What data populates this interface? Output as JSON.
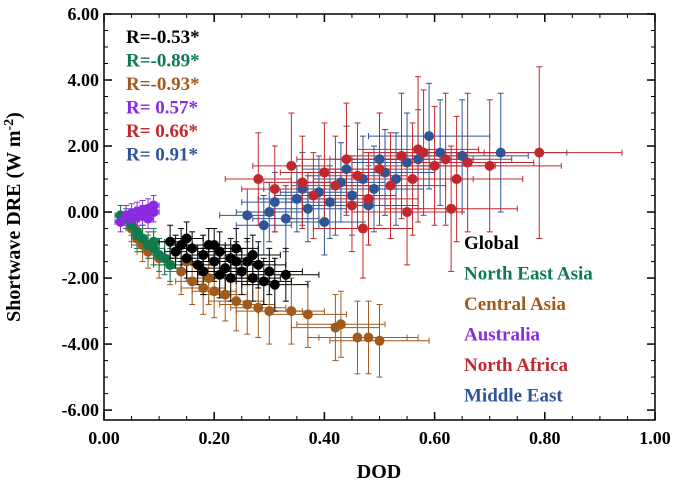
{
  "chart_data": {
    "type": "scatter",
    "xlabel": "DOD",
    "ylabel_main": "Shortwave DRE (W m",
    "ylabel_exp": "-2",
    "ylabel_close": ")",
    "xlim": [
      0,
      1
    ],
    "ylim": [
      -6.3,
      6.0
    ],
    "x_ticks": [
      0,
      0.2,
      0.4,
      0.6,
      0.8,
      1.0
    ],
    "x_tick_labels": [
      "0.00",
      "0.20",
      "0.40",
      "0.60",
      "0.80",
      "1.00"
    ],
    "y_ticks": [
      6,
      4,
      2,
      0,
      -2,
      -4,
      -6
    ],
    "y_tick_labels": [
      "6.00",
      "4.00",
      "2.00",
      "0.00",
      "-2.00",
      "-4.00",
      "-6.00"
    ],
    "grid": false,
    "legend_placement": "right",
    "stats_placement": "top-left",
    "stats": [
      {
        "text": "R=-0.53*",
        "color": "#000000"
      },
      {
        "text": "R=-0.89*",
        "color": "#0f7a4f"
      },
      {
        "text": "R=-0.93*",
        "color": "#a05a1c"
      },
      {
        "text": "R= 0.57*",
        "color": "#8a2be2"
      },
      {
        "text": "R= 0.66*",
        "color": "#c0282d"
      },
      {
        "text": "R= 0.91*",
        "color": "#2f5597"
      }
    ],
    "series": [
      {
        "name": "Global",
        "color": "#000000",
        "points": [
          [
            0.12,
            -0.9,
            0.02,
            0.5
          ],
          [
            0.13,
            -1.2,
            0.02,
            0.5
          ],
          [
            0.14,
            -1.0,
            0.02,
            0.5
          ],
          [
            0.15,
            -1.4,
            0.03,
            0.6
          ],
          [
            0.16,
            -1.1,
            0.03,
            0.5
          ],
          [
            0.17,
            -1.6,
            0.03,
            0.6
          ],
          [
            0.18,
            -1.3,
            0.03,
            0.6
          ],
          [
            0.19,
            -1.0,
            0.03,
            0.5
          ],
          [
            0.2,
            -1.5,
            0.04,
            0.6
          ],
          [
            0.21,
            -1.2,
            0.04,
            0.6
          ],
          [
            0.22,
            -1.7,
            0.04,
            0.7
          ],
          [
            0.23,
            -1.4,
            0.04,
            0.6
          ],
          [
            0.24,
            -1.1,
            0.04,
            0.6
          ],
          [
            0.25,
            -1.8,
            0.05,
            0.7
          ],
          [
            0.26,
            -1.5,
            0.05,
            0.7
          ],
          [
            0.27,
            -2.0,
            0.05,
            0.7
          ],
          [
            0.28,
            -1.6,
            0.05,
            0.7
          ],
          [
            0.29,
            -2.1,
            0.05,
            0.7
          ],
          [
            0.3,
            -1.8,
            0.06,
            0.7
          ],
          [
            0.31,
            -2.2,
            0.06,
            0.8
          ],
          [
            0.33,
            -1.9,
            0.06,
            0.8
          ],
          [
            0.15,
            -0.8,
            0.03,
            0.5
          ],
          [
            0.18,
            -1.8,
            0.03,
            0.7
          ],
          [
            0.21,
            -1.9,
            0.04,
            0.7
          ],
          [
            0.24,
            -1.5,
            0.04,
            0.6
          ],
          [
            0.27,
            -1.3,
            0.05,
            0.6
          ],
          [
            0.2,
            -1.0,
            0.04,
            0.5
          ],
          [
            0.23,
            -2.0,
            0.04,
            0.7
          ]
        ]
      },
      {
        "name": "North East Asia",
        "color": "#0f7a4f",
        "points": [
          [
            0.04,
            -0.2,
            0.01,
            0.3
          ],
          [
            0.05,
            -0.4,
            0.01,
            0.3
          ],
          [
            0.06,
            -0.6,
            0.01,
            0.4
          ],
          [
            0.07,
            -0.8,
            0.01,
            0.4
          ],
          [
            0.08,
            -1.0,
            0.02,
            0.4
          ],
          [
            0.09,
            -1.1,
            0.02,
            0.5
          ],
          [
            0.1,
            -1.3,
            0.02,
            0.5
          ],
          [
            0.11,
            -1.4,
            0.02,
            0.5
          ],
          [
            0.12,
            -1.6,
            0.02,
            0.5
          ],
          [
            0.06,
            -0.7,
            0.01,
            0.4
          ],
          [
            0.09,
            -0.9,
            0.02,
            0.4
          ],
          [
            0.03,
            -0.1,
            0.01,
            0.3
          ]
        ]
      },
      {
        "name": "Central Asia",
        "color": "#a05a1c",
        "points": [
          [
            0.05,
            -0.5,
            0.01,
            0.4
          ],
          [
            0.06,
            -0.8,
            0.01,
            0.4
          ],
          [
            0.07,
            -1.0,
            0.02,
            0.5
          ],
          [
            0.08,
            -1.2,
            0.02,
            0.5
          ],
          [
            0.1,
            -1.4,
            0.02,
            0.6
          ],
          [
            0.12,
            -1.6,
            0.03,
            0.6
          ],
          [
            0.14,
            -1.8,
            0.03,
            0.7
          ],
          [
            0.16,
            -2.1,
            0.03,
            0.7
          ],
          [
            0.18,
            -2.3,
            0.04,
            0.8
          ],
          [
            0.2,
            -2.4,
            0.04,
            0.8
          ],
          [
            0.22,
            -2.5,
            0.04,
            0.8
          ],
          [
            0.24,
            -2.7,
            0.05,
            0.9
          ],
          [
            0.26,
            -2.8,
            0.05,
            0.9
          ],
          [
            0.28,
            -2.9,
            0.05,
            0.9
          ],
          [
            0.3,
            -3.0,
            0.06,
            1.0
          ],
          [
            0.34,
            -3.0,
            0.06,
            1.0
          ],
          [
            0.37,
            -3.1,
            0.07,
            1.0
          ],
          [
            0.43,
            -3.4,
            0.08,
            1.0
          ],
          [
            0.42,
            -3.5,
            0.08,
            1.0
          ],
          [
            0.46,
            -3.8,
            0.09,
            1.1
          ],
          [
            0.48,
            -3.8,
            0.09,
            1.1
          ],
          [
            0.5,
            -3.9,
            0.09,
            1.1
          ],
          [
            0.19,
            -2.0,
            0.04,
            0.8
          ],
          [
            0.15,
            -1.5,
            0.03,
            0.6
          ]
        ]
      },
      {
        "name": "Australia",
        "color": "#8a2be2",
        "points": [
          [
            0.03,
            -0.3,
            0.01,
            0.3
          ],
          [
            0.04,
            -0.1,
            0.01,
            0.3
          ],
          [
            0.05,
            -0.2,
            0.01,
            0.3
          ],
          [
            0.06,
            0.0,
            0.01,
            0.3
          ],
          [
            0.07,
            -0.1,
            0.01,
            0.3
          ],
          [
            0.08,
            0.1,
            0.01,
            0.3
          ],
          [
            0.09,
            0.2,
            0.01,
            0.3
          ],
          [
            0.08,
            -0.2,
            0.01,
            0.3
          ],
          [
            0.07,
            0.05,
            0.01,
            0.3
          ],
          [
            0.06,
            -0.15,
            0.01,
            0.3
          ],
          [
            0.05,
            -0.05,
            0.01,
            0.3
          ],
          [
            0.09,
            0.0,
            0.01,
            0.3
          ]
        ]
      },
      {
        "name": "North Africa",
        "color": "#c0282d",
        "points": [
          [
            0.28,
            1.0,
            0.06,
            1.4
          ],
          [
            0.31,
            0.7,
            0.06,
            1.3
          ],
          [
            0.34,
            1.4,
            0.07,
            1.6
          ],
          [
            0.36,
            0.9,
            0.07,
            1.4
          ],
          [
            0.38,
            0.5,
            0.07,
            1.3
          ],
          [
            0.4,
            1.2,
            0.08,
            1.5
          ],
          [
            0.42,
            0.8,
            0.08,
            1.5
          ],
          [
            0.44,
            1.6,
            0.09,
            1.7
          ],
          [
            0.46,
            1.1,
            0.09,
            1.6
          ],
          [
            0.48,
            0.4,
            0.09,
            1.4
          ],
          [
            0.5,
            1.3,
            0.1,
            1.7
          ],
          [
            0.52,
            0.8,
            0.1,
            1.6
          ],
          [
            0.54,
            1.7,
            0.1,
            1.9
          ],
          [
            0.56,
            1.0,
            0.11,
            1.7
          ],
          [
            0.58,
            1.8,
            0.11,
            1.9
          ],
          [
            0.6,
            1.4,
            0.11,
            1.8
          ],
          [
            0.62,
            1.6,
            0.12,
            2.0
          ],
          [
            0.64,
            1.0,
            0.12,
            1.9
          ],
          [
            0.66,
            1.5,
            0.12,
            2.1
          ],
          [
            0.7,
            1.4,
            0.13,
            2.0
          ],
          [
            0.79,
            1.8,
            0.15,
            2.6
          ],
          [
            0.55,
            0.0,
            0.1,
            1.6
          ],
          [
            0.47,
            -0.5,
            0.09,
            1.5
          ],
          [
            0.63,
            0.1,
            0.12,
            1.9
          ],
          [
            0.45,
            0.2,
            0.09,
            1.4
          ],
          [
            0.57,
            1.9,
            0.11,
            2.2
          ]
        ]
      },
      {
        "name": "Middle East",
        "color": "#2f5597",
        "points": [
          [
            0.26,
            -0.1,
            0.05,
            0.8
          ],
          [
            0.29,
            -0.4,
            0.05,
            0.9
          ],
          [
            0.31,
            0.3,
            0.06,
            0.9
          ],
          [
            0.33,
            -0.2,
            0.06,
            1.0
          ],
          [
            0.35,
            0.4,
            0.07,
            1.0
          ],
          [
            0.37,
            0.1,
            0.07,
            1.0
          ],
          [
            0.39,
            0.6,
            0.07,
            1.1
          ],
          [
            0.41,
            0.3,
            0.08,
            1.1
          ],
          [
            0.43,
            0.9,
            0.08,
            1.2
          ],
          [
            0.45,
            0.5,
            0.08,
            1.2
          ],
          [
            0.47,
            1.0,
            0.09,
            1.3
          ],
          [
            0.49,
            0.7,
            0.09,
            1.3
          ],
          [
            0.51,
            1.2,
            0.09,
            1.3
          ],
          [
            0.53,
            1.0,
            0.1,
            1.4
          ],
          [
            0.55,
            1.5,
            0.1,
            1.5
          ],
          [
            0.57,
            1.6,
            0.1,
            1.5
          ],
          [
            0.59,
            2.3,
            0.11,
            1.6
          ],
          [
            0.61,
            1.8,
            0.11,
            1.6
          ],
          [
            0.65,
            1.7,
            0.12,
            1.7
          ],
          [
            0.72,
            1.8,
            0.12,
            1.8
          ],
          [
            0.36,
            0.7,
            0.07,
            1.1
          ],
          [
            0.44,
            1.3,
            0.08,
            1.3
          ],
          [
            0.5,
            1.6,
            0.09,
            1.4
          ],
          [
            0.3,
            0.0,
            0.06,
            0.9
          ],
          [
            0.4,
            -0.3,
            0.07,
            1.0
          ],
          [
            0.48,
            0.2,
            0.09,
            1.2
          ]
        ]
      }
    ]
  }
}
